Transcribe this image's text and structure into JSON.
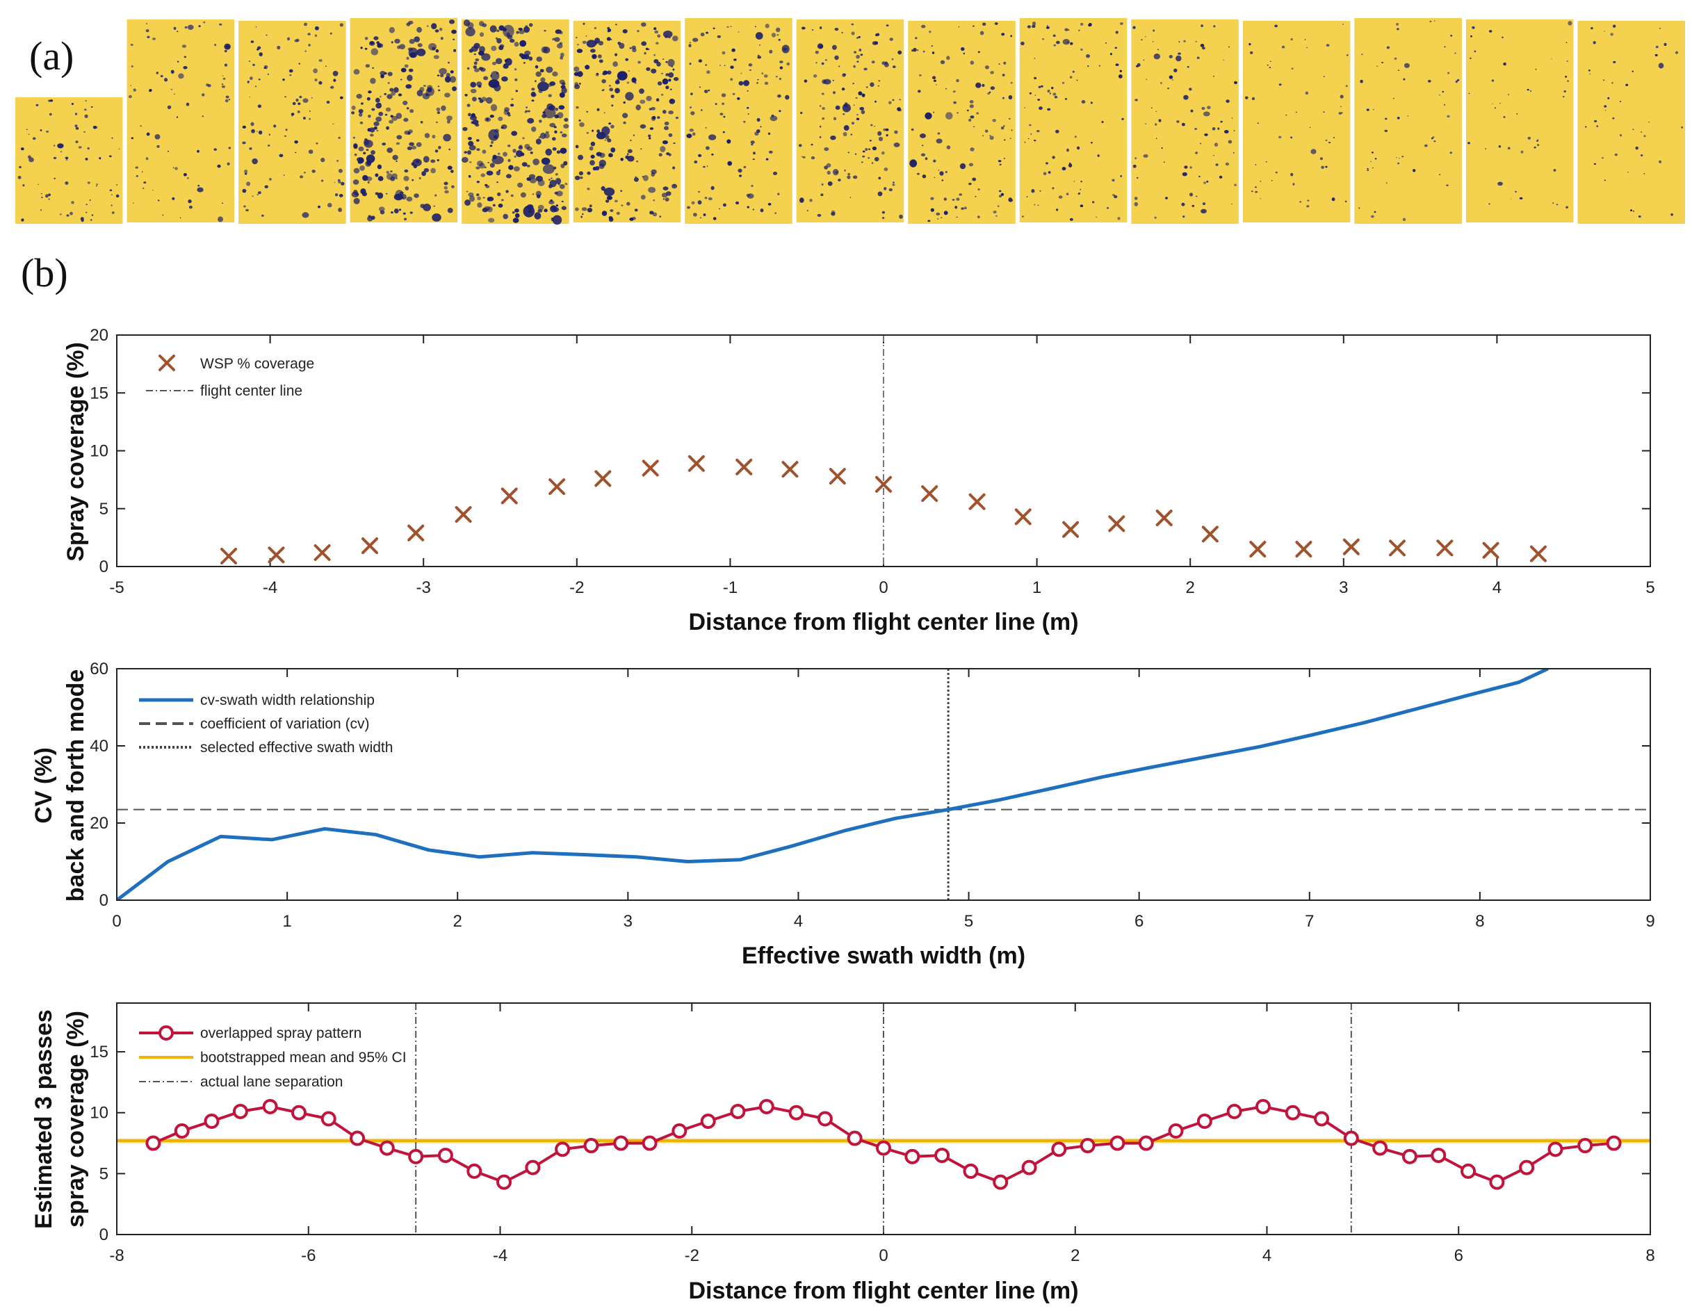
{
  "figure": {
    "panel_a_label": "(a)",
    "panel_b_label": "(b)",
    "strip_count": 15,
    "strip_colors": {
      "paper": "#f4d250",
      "droplet": "#1b1f6a"
    },
    "strip_density": [
      0.8,
      0.9,
      1.2,
      2.6,
      3.2,
      2.4,
      1.4,
      1.6,
      1.3,
      1.1,
      1.0,
      0.6,
      0.6,
      0.5,
      0.5
    ]
  },
  "chart_data": [
    {
      "type": "scatter",
      "title": "",
      "xlabel": "Distance from flight center line (m)",
      "ylabel": "Spray coverage (%)",
      "xlim": [
        -5,
        5
      ],
      "ylim": [
        0,
        20
      ],
      "xticks": [
        "-5",
        "-4",
        "-3",
        "-2",
        "-1",
        "0",
        "1",
        "2",
        "3",
        "4",
        "5"
      ],
      "yticks": [
        "0",
        "5",
        "10",
        "15",
        "20"
      ],
      "legend": {
        "position": "top-left",
        "entries": [
          "WSP % coverage",
          "flight center line"
        ]
      },
      "series": [
        {
          "name": "WSP % coverage",
          "marker": "x",
          "color": "#a0522d",
          "x": [
            -4.27,
            -3.96,
            -3.66,
            -3.35,
            -3.05,
            -2.74,
            -2.44,
            -2.13,
            -1.83,
            -1.52,
            -1.22,
            -0.91,
            -0.61,
            -0.3,
            0,
            0.3,
            0.61,
            0.91,
            1.22,
            1.52,
            1.83,
            2.13,
            2.44,
            2.74,
            3.05,
            3.35,
            3.66,
            3.96,
            4.27
          ],
          "y": [
            0.9,
            1.0,
            1.2,
            1.8,
            2.9,
            4.5,
            6.1,
            6.9,
            7.6,
            8.5,
            8.9,
            8.6,
            8.4,
            7.8,
            7.1,
            6.3,
            5.6,
            4.3,
            3.2,
            3.7,
            4.2,
            2.8,
            1.5,
            1.5,
            1.7,
            1.6,
            1.6,
            1.4,
            1.1
          ]
        },
        {
          "name": "flight center line",
          "style": "dash-dot",
          "color": "#777777",
          "x_position": 0
        }
      ]
    },
    {
      "type": "line",
      "title": "",
      "xlabel": "Effective swath width (m)",
      "ylabel": [
        "back and forth mode",
        "CV (%)"
      ],
      "xlim": [
        0,
        9
      ],
      "ylim": [
        0,
        60
      ],
      "xticks": [
        "0",
        "1",
        "2",
        "3",
        "4",
        "5",
        "6",
        "7",
        "8",
        "9"
      ],
      "yticks": [
        "0",
        "20",
        "40",
        "60"
      ],
      "legend": {
        "position": "top-left",
        "entries": [
          "cv-swath width relationship",
          "coefficient of variation (cv)",
          "selected effective swath width"
        ]
      },
      "series": [
        {
          "name": "cv-swath width relationship",
          "color": "#1f6fbf",
          "x": [
            0,
            0.3,
            0.61,
            0.91,
            1.22,
            1.52,
            1.83,
            2.13,
            2.44,
            2.74,
            3.05,
            3.35,
            3.66,
            3.96,
            4.27,
            4.57,
            4.88,
            5.18,
            5.49,
            5.79,
            6.1,
            6.4,
            6.71,
            7.01,
            7.32,
            7.62,
            7.92,
            8.23,
            8.4
          ],
          "y": [
            0,
            10,
            16.5,
            15.7,
            18.5,
            17,
            13,
            11.2,
            12.3,
            11.8,
            11.2,
            10,
            10.5,
            14,
            18,
            21.2,
            23.5,
            26,
            29,
            32,
            34.7,
            37.2,
            39.8,
            42.8,
            46,
            49.5,
            53,
            56.5,
            60
          ]
        },
        {
          "name": "coefficient of variation (cv)",
          "style": "dashed",
          "color": "#555555",
          "y_value": 23.5
        },
        {
          "name": "selected effective swath width",
          "style": "dotted",
          "color": "#444444",
          "x_position": 4.88
        }
      ]
    },
    {
      "type": "line",
      "title": "",
      "xlabel": "Distance from flight center line (m)",
      "ylabel": [
        "Estimated 3 passes",
        "spray coverage (%)"
      ],
      "xlim": [
        -8,
        8
      ],
      "ylim": [
        0,
        19
      ],
      "xticks": [
        "-8",
        "-6",
        "-4",
        "-2",
        "0",
        "2",
        "4",
        "6",
        "8"
      ],
      "yticks": [
        "0",
        "5",
        "10",
        "15"
      ],
      "legend": {
        "position": "top-left",
        "entries": [
          "overlapped spray pattern",
          "bootstrapped mean and 95% CI",
          "actual lane separation"
        ]
      },
      "series": [
        {
          "name": "overlapped spray pattern",
          "marker": "o",
          "color": "#c0143c",
          "x": [
            -7.62,
            -7.32,
            -7.01,
            -6.71,
            -6.4,
            -6.1,
            -5.79,
            -5.49,
            -5.18,
            -4.88,
            -4.57,
            -4.27,
            -3.96,
            -3.66,
            -3.35,
            -3.05,
            -2.74,
            -2.44,
            -2.13,
            -1.83,
            -1.52,
            -1.22,
            -0.91,
            -0.61,
            -0.3,
            0,
            0.3,
            0.61,
            0.91,
            1.22,
            1.52,
            1.83,
            2.13,
            2.44,
            2.74,
            3.05,
            3.35,
            3.66,
            3.96,
            4.27,
            4.57,
            4.88,
            5.18,
            5.49,
            5.79,
            6.1,
            6.4,
            6.71,
            7.01,
            7.32,
            7.62
          ],
          "y": [
            7.5,
            8.5,
            9.3,
            10.1,
            10.5,
            10.0,
            9.5,
            7.9,
            7.1,
            6.4,
            6.5,
            5.2,
            4.3,
            5.5,
            7.0,
            7.3,
            7.5,
            7.5,
            8.5,
            9.3,
            10.1,
            10.5,
            10.0,
            9.5,
            7.9,
            7.1,
            6.4,
            6.5,
            5.2,
            4.3,
            5.5,
            7.0,
            7.3,
            7.5,
            7.5,
            8.5,
            9.3,
            10.1,
            10.5,
            10.0,
            9.5,
            7.9,
            7.1,
            6.4,
            6.5,
            5.2,
            4.3,
            5.5,
            7.0,
            7.3,
            7.5
          ]
        },
        {
          "name": "bootstrapped mean and 95% CI",
          "color": "#f0b400",
          "mean": 7.7,
          "ci": [
            7.5,
            7.9
          ]
        },
        {
          "name": "actual lane separation",
          "style": "dash-dot",
          "color": "#555555",
          "x_positions": [
            -4.88,
            0,
            4.88
          ]
        }
      ]
    }
  ]
}
